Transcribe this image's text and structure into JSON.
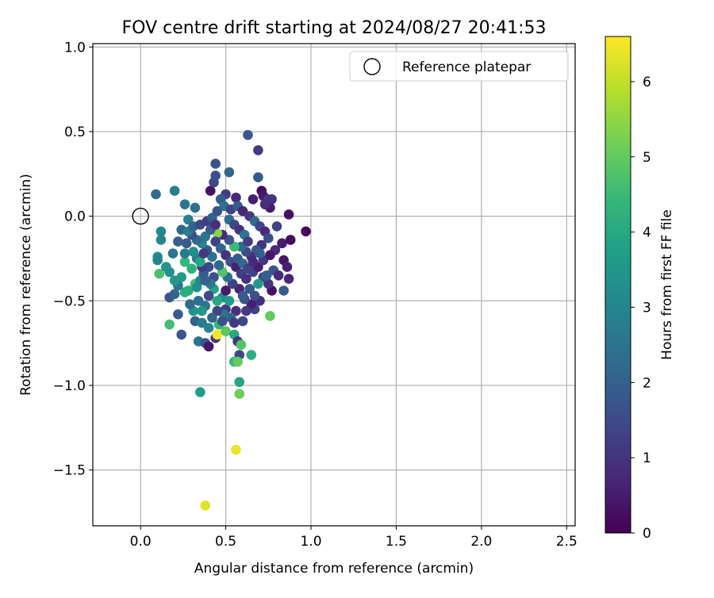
{
  "chart_data": {
    "type": "scatter",
    "title": "FOV centre drift starting at 2024/08/27 20:41:53",
    "xlabel": "Angular distance from reference (arcmin)",
    "ylabel": "Rotation from reference (arcmin)",
    "xlim": [
      -0.28,
      2.55
    ],
    "ylim": [
      -1.83,
      1.02
    ],
    "xticks": [
      0.0,
      0.5,
      1.0,
      1.5,
      2.0,
      2.5
    ],
    "xtick_labels": [
      "0.0",
      "0.5",
      "1.0",
      "1.5",
      "2.0",
      "2.5"
    ],
    "yticks": [
      1.0,
      0.5,
      0.0,
      -0.5,
      -1.0,
      -1.5
    ],
    "ytick_labels": [
      "1.0",
      "0.5",
      "0.0",
      "−0.5",
      "−1.0",
      "−1.5"
    ],
    "grid": true,
    "legend": {
      "position": "top-right",
      "entries": [
        "Reference platepar"
      ]
    },
    "reference_point": {
      "x": 0.0,
      "y": 0.0
    },
    "colorbar": {
      "label": "Hours from first FF file",
      "min": 0,
      "max": 6.6,
      "ticks": [
        0,
        1,
        2,
        3,
        4,
        5,
        6
      ],
      "tick_labels": [
        "0",
        "1",
        "2",
        "3",
        "4",
        "5",
        "6"
      ],
      "colormap": "viridis",
      "colors": [
        "#440154",
        "#482878",
        "#3e4989",
        "#31688e",
        "#26828e",
        "#1f9e89",
        "#35b779",
        "#6ece58",
        "#b5de2b",
        "#fde725"
      ]
    },
    "series": [
      {
        "points": [
          {
            "x": 0.09,
            "y": 0.13,
            "h": 2.3
          },
          {
            "x": 0.2,
            "y": 0.15,
            "h": 2.8
          },
          {
            "x": 0.26,
            "y": 0.07,
            "h": 2.6
          },
          {
            "x": 0.32,
            "y": 0.05,
            "h": 2.4
          },
          {
            "x": 0.28,
            "y": -0.02,
            "h": 2.9
          },
          {
            "x": 0.24,
            "y": -0.08,
            "h": 2.2
          },
          {
            "x": 0.12,
            "y": -0.09,
            "h": 3.1
          },
          {
            "x": 0.12,
            "y": -0.14,
            "h": 3.0
          },
          {
            "x": 0.1,
            "y": -0.24,
            "h": 3.2
          },
          {
            "x": 0.1,
            "y": -0.26,
            "h": 3.0
          },
          {
            "x": 0.11,
            "y": -0.34,
            "h": 4.7
          },
          {
            "x": 0.17,
            "y": -0.33,
            "h": 3.3
          },
          {
            "x": 0.26,
            "y": -0.27,
            "h": 4.4
          },
          {
            "x": 0.3,
            "y": -0.31,
            "h": 4.2
          },
          {
            "x": 0.24,
            "y": -0.36,
            "h": 3.6
          },
          {
            "x": 0.17,
            "y": -0.48,
            "h": 1.8
          },
          {
            "x": 0.2,
            "y": -0.46,
            "h": 2.1
          },
          {
            "x": 0.28,
            "y": -0.44,
            "h": 4.0
          },
          {
            "x": 0.32,
            "y": -0.4,
            "h": 4.6
          },
          {
            "x": 0.17,
            "y": -0.64,
            "h": 4.6
          },
          {
            "x": 0.22,
            "y": -0.58,
            "h": 1.9
          },
          {
            "x": 0.24,
            "y": -0.7,
            "h": 1.7
          },
          {
            "x": 0.31,
            "y": -0.56,
            "h": 3.4
          },
          {
            "x": 0.34,
            "y": -0.74,
            "h": 2.6
          },
          {
            "x": 0.38,
            "y": -0.75,
            "h": 1.8
          },
          {
            "x": 0.4,
            "y": -0.77,
            "h": 0.4
          },
          {
            "x": 0.44,
            "y": -0.72,
            "h": 1.1
          },
          {
            "x": 0.45,
            "y": -0.7,
            "h": 6.5
          },
          {
            "x": 0.46,
            "y": -0.64,
            "h": 4.4
          },
          {
            "x": 0.5,
            "y": -0.68,
            "h": 4.9
          },
          {
            "x": 0.55,
            "y": -0.7,
            "h": 4.0
          },
          {
            "x": 0.57,
            "y": -0.74,
            "h": 1.0
          },
          {
            "x": 0.59,
            "y": -0.76,
            "h": 4.8
          },
          {
            "x": 0.58,
            "y": -0.82,
            "h": 1.4
          },
          {
            "x": 0.65,
            "y": -0.82,
            "h": 4.1
          },
          {
            "x": 0.55,
            "y": -0.86,
            "h": 4.3
          },
          {
            "x": 0.57,
            "y": -0.86,
            "h": 5.0
          },
          {
            "x": 0.58,
            "y": -0.98,
            "h": 3.9
          },
          {
            "x": 0.58,
            "y": -1.05,
            "h": 5.1
          },
          {
            "x": 0.35,
            "y": -1.04,
            "h": 3.7
          },
          {
            "x": 0.56,
            "y": -1.38,
            "h": 6.4
          },
          {
            "x": 0.38,
            "y": -1.71,
            "h": 6.3
          },
          {
            "x": 0.41,
            "y": 0.15,
            "h": 0.3
          },
          {
            "x": 0.43,
            "y": 0.2,
            "h": 1.4
          },
          {
            "x": 0.44,
            "y": 0.24,
            "h": 1.6
          },
          {
            "x": 0.44,
            "y": 0.31,
            "h": 1.7
          },
          {
            "x": 0.52,
            "y": 0.26,
            "h": 2.1
          },
          {
            "x": 0.5,
            "y": 0.13,
            "h": 1.2
          },
          {
            "x": 0.47,
            "y": 0.1,
            "h": 2.0
          },
          {
            "x": 0.56,
            "y": 0.11,
            "h": 0.8
          },
          {
            "x": 0.63,
            "y": 0.48,
            "h": 1.8
          },
          {
            "x": 0.69,
            "y": 0.39,
            "h": 1.1
          },
          {
            "x": 0.69,
            "y": 0.23,
            "h": 1.9
          },
          {
            "x": 0.66,
            "y": 0.1,
            "h": 0.6
          },
          {
            "x": 0.71,
            "y": 0.15,
            "h": 0.2
          },
          {
            "x": 0.72,
            "y": 0.12,
            "h": 0.5
          },
          {
            "x": 0.75,
            "y": 0.1,
            "h": 1.2
          },
          {
            "x": 0.77,
            "y": 0.1,
            "h": 1.0
          },
          {
            "x": 0.76,
            "y": 0.05,
            "h": 0.5
          },
          {
            "x": 0.73,
            "y": 0.07,
            "h": 0.9
          },
          {
            "x": 0.87,
            "y": 0.01,
            "h": 0.3
          },
          {
            "x": 0.97,
            "y": -0.09,
            "h": 0.1
          },
          {
            "x": 0.88,
            "y": -0.14,
            "h": 0.2
          },
          {
            "x": 0.83,
            "y": -0.16,
            "h": 0.5
          },
          {
            "x": 0.8,
            "y": -0.06,
            "h": 1.3
          },
          {
            "x": 0.79,
            "y": -0.2,
            "h": 0.8
          },
          {
            "x": 0.84,
            "y": -0.26,
            "h": 0.4
          },
          {
            "x": 0.86,
            "y": -0.3,
            "h": 0.6
          },
          {
            "x": 0.87,
            "y": -0.37,
            "h": 0.7
          },
          {
            "x": 0.84,
            "y": -0.44,
            "h": 1.9
          },
          {
            "x": 0.77,
            "y": -0.44,
            "h": 0.3
          },
          {
            "x": 0.75,
            "y": -0.4,
            "h": 1.0
          },
          {
            "x": 0.72,
            "y": -0.36,
            "h": 1.5
          },
          {
            "x": 0.69,
            "y": -0.4,
            "h": 3.6
          },
          {
            "x": 0.76,
            "y": -0.59,
            "h": 5.0
          },
          {
            "x": 0.7,
            "y": -0.5,
            "h": 0.9
          },
          {
            "x": 0.67,
            "y": -0.55,
            "h": 1.3
          },
          {
            "x": 0.65,
            "y": -0.52,
            "h": 0.6
          },
          {
            "x": 0.62,
            "y": -0.56,
            "h": 1.1
          },
          {
            "x": 0.6,
            "y": -0.62,
            "h": 1.4
          },
          {
            "x": 0.61,
            "y": -0.49,
            "h": 1.6
          },
          {
            "x": 0.56,
            "y": -0.56,
            "h": 0.9
          },
          {
            "x": 0.53,
            "y": -0.6,
            "h": 2.1
          },
          {
            "x": 0.5,
            "y": -0.55,
            "h": 1.2
          },
          {
            "x": 0.48,
            "y": -0.48,
            "h": 3.3
          },
          {
            "x": 0.45,
            "y": -0.5,
            "h": 4.0
          },
          {
            "x": 0.43,
            "y": -0.43,
            "h": 3.8
          },
          {
            "x": 0.4,
            "y": -0.47,
            "h": 1.5
          },
          {
            "x": 0.38,
            "y": -0.53,
            "h": 2.6
          },
          {
            "x": 0.36,
            "y": -0.56,
            "h": 3.5
          },
          {
            "x": 0.34,
            "y": -0.5,
            "h": 2.4
          },
          {
            "x": 0.33,
            "y": -0.42,
            "h": 3.3
          },
          {
            "x": 0.35,
            "y": -0.38,
            "h": 3.1
          },
          {
            "x": 0.37,
            "y": -0.34,
            "h": 2.0
          },
          {
            "x": 0.4,
            "y": -0.3,
            "h": 1.5
          },
          {
            "x": 0.42,
            "y": -0.24,
            "h": 2.5
          },
          {
            "x": 0.39,
            "y": -0.2,
            "h": 1.8
          },
          {
            "x": 0.36,
            "y": -0.16,
            "h": 2.9
          },
          {
            "x": 0.33,
            "y": -0.14,
            "h": 2.2
          },
          {
            "x": 0.3,
            "y": -0.11,
            "h": 1.6
          },
          {
            "x": 0.27,
            "y": -0.16,
            "h": 1.9
          },
          {
            "x": 0.26,
            "y": -0.22,
            "h": 2.7
          },
          {
            "x": 0.28,
            "y": -0.09,
            "h": 2.8
          },
          {
            "x": 0.31,
            "y": -0.06,
            "h": 2.1
          },
          {
            "x": 0.35,
            "y": -0.05,
            "h": 1.4
          },
          {
            "x": 0.39,
            "y": -0.03,
            "h": 1.2
          },
          {
            "x": 0.42,
            "y": -0.01,
            "h": 2.0
          },
          {
            "x": 0.45,
            "y": 0.03,
            "h": 1.7
          },
          {
            "x": 0.49,
            "y": 0.06,
            "h": 2.4
          },
          {
            "x": 0.53,
            "y": 0.04,
            "h": 1.3
          },
          {
            "x": 0.57,
            "y": 0.06,
            "h": 1.9
          },
          {
            "x": 0.6,
            "y": 0.03,
            "h": 0.7
          },
          {
            "x": 0.64,
            "y": 0.0,
            "h": 1.1
          },
          {
            "x": 0.67,
            "y": -0.03,
            "h": 2.2
          },
          {
            "x": 0.7,
            "y": -0.06,
            "h": 1.4
          },
          {
            "x": 0.73,
            "y": -0.09,
            "h": 0.8
          },
          {
            "x": 0.75,
            "y": -0.13,
            "h": 1.6
          },
          {
            "x": 0.71,
            "y": -0.17,
            "h": 1.0
          },
          {
            "x": 0.68,
            "y": -0.2,
            "h": 1.8
          },
          {
            "x": 0.65,
            "y": -0.24,
            "h": 0.9
          },
          {
            "x": 0.62,
            "y": -0.21,
            "h": 1.5
          },
          {
            "x": 0.59,
            "y": -0.18,
            "h": 2.3
          },
          {
            "x": 0.55,
            "y": -0.18,
            "h": 4.5
          },
          {
            "x": 0.52,
            "y": -0.14,
            "h": 1.7
          },
          {
            "x": 0.48,
            "y": -0.11,
            "h": 0.8
          },
          {
            "x": 0.45,
            "y": -0.1,
            "h": 5.4
          },
          {
            "x": 0.44,
            "y": -0.15,
            "h": 1.3
          },
          {
            "x": 0.47,
            "y": -0.19,
            "h": 2.1
          },
          {
            "x": 0.5,
            "y": -0.23,
            "h": 1.0
          },
          {
            "x": 0.53,
            "y": -0.27,
            "h": 1.6
          },
          {
            "x": 0.56,
            "y": -0.3,
            "h": 0.6
          },
          {
            "x": 0.59,
            "y": -0.34,
            "h": 1.2
          },
          {
            "x": 0.62,
            "y": -0.37,
            "h": 0.9
          },
          {
            "x": 0.66,
            "y": -0.33,
            "h": 1.4
          },
          {
            "x": 0.69,
            "y": -0.3,
            "h": 0.5
          },
          {
            "x": 0.72,
            "y": -0.26,
            "h": 1.1
          },
          {
            "x": 0.76,
            "y": -0.23,
            "h": 0.4
          },
          {
            "x": 0.78,
            "y": -0.32,
            "h": 1.7
          },
          {
            "x": 0.81,
            "y": -0.35,
            "h": 0.8
          },
          {
            "x": 0.74,
            "y": -0.35,
            "h": 2.0
          },
          {
            "x": 0.64,
            "y": -0.43,
            "h": 1.8
          },
          {
            "x": 0.58,
            "y": -0.43,
            "h": 0.7
          },
          {
            "x": 0.54,
            "y": -0.4,
            "h": 1.3
          },
          {
            "x": 0.51,
            "y": -0.36,
            "h": 2.4
          },
          {
            "x": 0.48,
            "y": -0.33,
            "h": 4.8
          },
          {
            "x": 0.46,
            "y": -0.29,
            "h": 2.2
          },
          {
            "x": 0.43,
            "y": -0.36,
            "h": 1.6
          },
          {
            "x": 0.41,
            "y": -0.4,
            "h": 2.7
          },
          {
            "x": 0.38,
            "y": -0.38,
            "h": 2.0
          },
          {
            "x": 0.36,
            "y": -0.3,
            "h": 1.2
          },
          {
            "x": 0.33,
            "y": -0.25,
            "h": 2.8
          },
          {
            "x": 0.31,
            "y": -0.21,
            "h": 3.2
          },
          {
            "x": 0.35,
            "y": -0.27,
            "h": 3.9
          },
          {
            "x": 0.38,
            "y": -0.12,
            "h": 2.5
          },
          {
            "x": 0.41,
            "y": -0.08,
            "h": 1.9
          },
          {
            "x": 0.44,
            "y": -0.05,
            "h": 0.9
          },
          {
            "x": 0.52,
            "y": -0.02,
            "h": 2.3
          },
          {
            "x": 0.55,
            "y": -0.05,
            "h": 1.5
          },
          {
            "x": 0.58,
            "y": -0.08,
            "h": 1.0
          },
          {
            "x": 0.61,
            "y": -0.11,
            "h": 2.6
          },
          {
            "x": 0.63,
            "y": -0.15,
            "h": 1.2
          },
          {
            "x": 0.57,
            "y": -0.25,
            "h": 1.9
          },
          {
            "x": 0.6,
            "y": -0.28,
            "h": 2.2
          },
          {
            "x": 0.63,
            "y": -0.31,
            "h": 1.3
          },
          {
            "x": 0.66,
            "y": -0.27,
            "h": 0.8
          },
          {
            "x": 0.7,
            "y": -0.22,
            "h": 2.0
          },
          {
            "x": 0.52,
            "y": -0.5,
            "h": 3.6
          },
          {
            "x": 0.49,
            "y": -0.58,
            "h": 2.5
          },
          {
            "x": 0.45,
            "y": -0.56,
            "h": 1.4
          },
          {
            "x": 0.42,
            "y": -0.6,
            "h": 2.1
          },
          {
            "x": 0.32,
            "y": -0.62,
            "h": 2.0
          },
          {
            "x": 0.29,
            "y": -0.52,
            "h": 2.3
          },
          {
            "x": 0.26,
            "y": -0.45,
            "h": 4.1
          },
          {
            "x": 0.22,
            "y": -0.41,
            "h": 2.6
          },
          {
            "x": 0.2,
            "y": -0.38,
            "h": 3.5
          },
          {
            "x": 0.15,
            "y": -0.3,
            "h": 3.4
          },
          {
            "x": 0.19,
            "y": -0.22,
            "h": 2.5
          },
          {
            "x": 0.22,
            "y": -0.15,
            "h": 2.0
          },
          {
            "x": 0.55,
            "y": -0.63,
            "h": 1.1
          },
          {
            "x": 0.4,
            "y": -0.66,
            "h": 3.0
          },
          {
            "x": 0.36,
            "y": -0.63,
            "h": 2.7
          },
          {
            "x": 0.48,
            "y": -0.62,
            "h": 1.7
          },
          {
            "x": 0.37,
            "y": -0.22,
            "h": 1.1
          },
          {
            "x": 0.5,
            "y": -0.44,
            "h": 0.5
          },
          {
            "x": 0.6,
            "y": -0.47,
            "h": 1.9
          },
          {
            "x": 0.67,
            "y": -0.47,
            "h": 1.6
          }
        ]
      }
    ]
  }
}
